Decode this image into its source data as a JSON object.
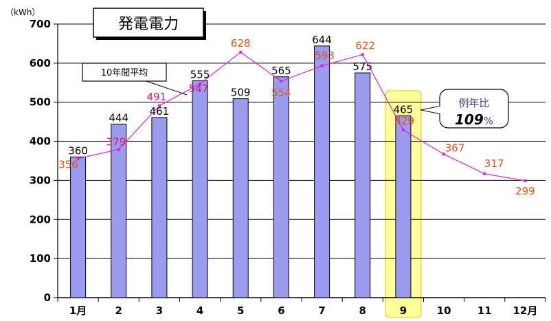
{
  "chart_data": {
    "type": "bar",
    "title": "発電電力",
    "unit_label": "（kWh）",
    "categories": [
      "1月",
      "2",
      "3",
      "4",
      "5",
      "6",
      "7",
      "8",
      "9",
      "10",
      "11",
      "12月"
    ],
    "ylim": [
      0,
      700
    ],
    "yticks": [
      0,
      100,
      200,
      300,
      400,
      500,
      600,
      700
    ],
    "grid": true,
    "series": [
      {
        "kind": "bar",
        "values": [
          360,
          444,
          461,
          555,
          509,
          565,
          644,
          575,
          465,
          null,
          null,
          null
        ],
        "labels": [
          "360",
          "444",
          "461",
          "555",
          "509",
          "565",
          "644",
          "575",
          "465",
          "",
          "",
          ""
        ],
        "color": "#9b9bf0"
      },
      {
        "kind": "line",
        "name": "10年間平均",
        "values": [
          356,
          379,
          491,
          547,
          628,
          554,
          593,
          622,
          429,
          367,
          317,
          299
        ],
        "labels": [
          "356",
          "379",
          "491",
          "547",
          "628",
          "554",
          "593",
          "622",
          "429",
          "367",
          "317",
          "299"
        ],
        "color": "#e020d0",
        "label_color": "#e05010",
        "label_color_alt": "#e0107a"
      }
    ],
    "highlight": {
      "category": "9",
      "color": "#ffff99"
    },
    "annotation": {
      "label": "例年比",
      "value": "109",
      "unit": "%"
    }
  }
}
